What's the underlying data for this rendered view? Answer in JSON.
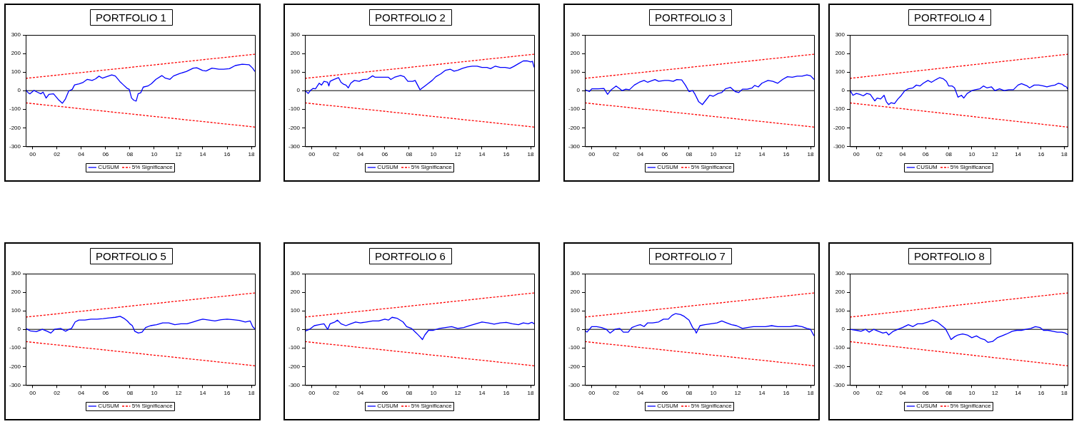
{
  "chart_data": [
    {
      "type": "line",
      "title": "PORTFOLIO 1",
      "xlim": [
        1999.43,
        2018.29
      ],
      "xticks": [
        {
          "value": 2000,
          "label": "00"
        },
        {
          "value": 2002,
          "label": "02"
        },
        {
          "value": 2004,
          "label": "04"
        },
        {
          "value": 2006,
          "label": "06"
        },
        {
          "value": 2008,
          "label": "08"
        },
        {
          "value": 2010,
          "label": "10"
        },
        {
          "value": 2012,
          "label": "12"
        },
        {
          "value": 2014,
          "label": "14"
        },
        {
          "value": 2016,
          "label": "16"
        },
        {
          "value": 2018,
          "label": "18"
        }
      ],
      "ylim": [
        -300,
        300
      ],
      "yticks": [
        -300,
        -200,
        -100,
        0,
        100,
        200,
        300
      ],
      "grid": false,
      "legend": "bottom",
      "marker": "none",
      "ref_lines": [
        {
          "axis": "y",
          "value": 0,
          "color": "#000000"
        }
      ],
      "series": [
        {
          "name": "CUSUM",
          "color": "#0000ff",
          "line_style": "solid",
          "x": [
            1999.43,
            1999.62,
            1999.77,
            2000.1,
            2000.38,
            2000.67,
            2000.86,
            2001.11,
            2001.34,
            2001.72,
            2002.1,
            2002.45,
            2002.68,
            2002.97,
            2003.26,
            2003.45,
            2003.83,
            2004.12,
            2004.5,
            2004.89,
            2005.17,
            2005.46,
            2005.75,
            2006.51,
            2006.8,
            2007.18,
            2007.47,
            2007.76,
            2007.95,
            2008.14,
            2008.33,
            2008.52,
            2008.68,
            2008.9,
            2009.1,
            2009.48,
            2009.77,
            2010.15,
            2010.63,
            2010.92,
            2011.3,
            2011.59,
            2012.07,
            2012.64,
            2013.22,
            2013.51,
            2013.98,
            2014.27,
            2014.75,
            2015.33,
            2015.71,
            2016.19,
            2016.67,
            2017.24,
            2017.82,
            2018.1,
            2018.29
          ],
          "values": [
            7,
            -11,
            -17,
            1,
            -8,
            -17,
            -8,
            -40,
            -20,
            -17,
            -47,
            -68,
            -47,
            -2,
            7,
            31,
            37,
            43,
            61,
            55,
            63,
            78,
            67,
            85,
            79,
            49,
            31,
            13,
            7,
            -40,
            -52,
            -56,
            -17,
            -11,
            19,
            25,
            37,
            61,
            81,
            67,
            61,
            79,
            91,
            103,
            121,
            123,
            109,
            106,
            121,
            115,
            115,
            118,
            135,
            142,
            139,
            121,
            103
          ]
        },
        {
          "name": "5% Significance",
          "color": "#ff0000",
          "line_style": "dashed",
          "x": [
            1999.43,
            2018.29
          ],
          "values": [
            66,
            196
          ]
        },
        {
          "color": "#ff0000",
          "line_style": "dashed",
          "x": [
            1999.43,
            2018.29
          ],
          "values": [
            -66,
            -196
          ]
        }
      ]
    },
    {
      "type": "line",
      "title": "PORTFOLIO 2",
      "xlim": [
        1999.43,
        2018.29
      ],
      "xticks": [
        {
          "value": 2000,
          "label": "00"
        },
        {
          "value": 2002,
          "label": "02"
        },
        {
          "value": 2004,
          "label": "04"
        },
        {
          "value": 2006,
          "label": "06"
        },
        {
          "value": 2008,
          "label": "08"
        },
        {
          "value": 2010,
          "label": "10"
        },
        {
          "value": 2012,
          "label": "12"
        },
        {
          "value": 2014,
          "label": "14"
        },
        {
          "value": 2016,
          "label": "16"
        },
        {
          "value": 2018,
          "label": "18"
        }
      ],
      "ylim": [
        -300,
        300
      ],
      "yticks": [
        -300,
        -200,
        -100,
        0,
        100,
        200,
        300
      ],
      "grid": false,
      "legend": "bottom",
      "marker": "none",
      "ref_lines": [
        {
          "axis": "y",
          "value": 0,
          "color": "#000000"
        }
      ],
      "series": [
        {
          "name": "CUSUM",
          "color": "#0000ff",
          "line_style": "solid",
          "x": [
            1999.43,
            1999.7,
            1999.9,
            2000.1,
            2000.3,
            2000.6,
            2000.8,
            2001.0,
            2001.3,
            2001.4,
            2001.5,
            2001.8,
            2002.2,
            2002.4,
            2002.6,
            2002.8,
            2003.0,
            2003.2,
            2003.5,
            2003.9,
            2004.2,
            2004.6,
            2005.0,
            2005.2,
            2005.8,
            2006.3,
            2006.5,
            2006.8,
            2007.3,
            2007.6,
            2007.9,
            2008.3,
            2008.5,
            2008.7,
            2008.9,
            2009.1,
            2009.3,
            2009.6,
            2009.9,
            2010.2,
            2010.6,
            2011.0,
            2011.4,
            2011.7,
            2012.0,
            2012.4,
            2012.8,
            2013.2,
            2013.6,
            2014.0,
            2014.4,
            2014.7,
            2015.1,
            2015.5,
            2015.9,
            2016.3,
            2016.6,
            2017.0,
            2017.4,
            2017.7,
            2018.0,
            2018.15,
            2018.29
          ],
          "values": [
            0,
            -15,
            2,
            12,
            10,
            40,
            30,
            50,
            45,
            25,
            50,
            60,
            70,
            45,
            35,
            30,
            15,
            40,
            55,
            50,
            60,
            62,
            80,
            72,
            72,
            72,
            60,
            72,
            82,
            75,
            50,
            50,
            55,
            30,
            5,
            15,
            25,
            40,
            55,
            75,
            90,
            110,
            115,
            105,
            110,
            120,
            128,
            132,
            132,
            125,
            125,
            118,
            132,
            125,
            125,
            120,
            130,
            145,
            160,
            160,
            155,
            158,
            125
          ]
        },
        {
          "name": "5% Significance",
          "color": "#ff0000",
          "line_style": "dashed",
          "x": [
            1999.43,
            2018.29
          ],
          "values": [
            66,
            196
          ]
        },
        {
          "color": "#ff0000",
          "line_style": "dashed",
          "x": [
            1999.43,
            2018.29
          ],
          "values": [
            -66,
            -196
          ]
        }
      ]
    },
    {
      "type": "line",
      "title": "PORTFOLIO 3",
      "xlim": [
        1999.43,
        2018.29
      ],
      "xticks": [
        {
          "value": 2000,
          "label": "00"
        },
        {
          "value": 2002,
          "label": "02"
        },
        {
          "value": 2004,
          "label": "04"
        },
        {
          "value": 2006,
          "label": "06"
        },
        {
          "value": 2008,
          "label": "08"
        },
        {
          "value": 2010,
          "label": "10"
        },
        {
          "value": 2012,
          "label": "12"
        },
        {
          "value": 2014,
          "label": "14"
        },
        {
          "value": 2016,
          "label": "16"
        },
        {
          "value": 2018,
          "label": "18"
        }
      ],
      "ylim": [
        -300,
        300
      ],
      "yticks": [
        -300,
        -200,
        -100,
        0,
        100,
        200,
        300
      ],
      "grid": false,
      "legend": "bottom",
      "marker": "none",
      "ref_lines": [
        {
          "axis": "y",
          "value": 0,
          "color": "#000000"
        }
      ],
      "series": [
        {
          "name": "CUSUM",
          "color": "#0000ff",
          "line_style": "solid",
          "x": [
            1999.43,
            1999.8,
            2000.0,
            2000.5,
            2001.0,
            2001.3,
            2001.6,
            2002.0,
            2002.3,
            2002.5,
            2002.8,
            2003.1,
            2003.5,
            2003.9,
            2004.3,
            2004.6,
            2005.0,
            2005.2,
            2005.5,
            2006.0,
            2006.3,
            2006.7,
            2007.0,
            2007.4,
            2007.7,
            2008.0,
            2008.3,
            2008.5,
            2008.8,
            2009.1,
            2009.4,
            2009.7,
            2010.0,
            2010.4,
            2010.7,
            2011.0,
            2011.4,
            2011.8,
            2012.1,
            2012.4,
            2012.8,
            2013.2,
            2013.4,
            2013.7,
            2014.0,
            2014.5,
            2014.9,
            2015.3,
            2015.7,
            2016.1,
            2016.5,
            2016.9,
            2017.3,
            2017.7,
            2018.0,
            2018.29
          ],
          "values": [
            5,
            -5,
            10,
            10,
            12,
            -20,
            5,
            25,
            10,
            0,
            8,
            5,
            30,
            45,
            55,
            45,
            55,
            60,
            50,
            55,
            55,
            50,
            60,
            58,
            30,
            -5,
            0,
            -20,
            -60,
            -75,
            -50,
            -25,
            -30,
            -15,
            -10,
            10,
            18,
            -5,
            -10,
            8,
            8,
            15,
            28,
            20,
            40,
            55,
            50,
            40,
            60,
            75,
            72,
            78,
            78,
            85,
            80,
            60
          ]
        },
        {
          "name": "5% Significance",
          "color": "#ff0000",
          "line_style": "dashed",
          "x": [
            1999.43,
            2018.29
          ],
          "values": [
            66,
            196
          ]
        },
        {
          "color": "#ff0000",
          "line_style": "dashed",
          "x": [
            1999.43,
            2018.29
          ],
          "values": [
            -66,
            -196
          ]
        }
      ]
    },
    {
      "type": "line",
      "title": "PORTFOLIO 4",
      "xlim": [
        1999.43,
        2018.29
      ],
      "xticks": [
        {
          "value": 2000,
          "label": "00"
        },
        {
          "value": 2002,
          "label": "02"
        },
        {
          "value": 2004,
          "label": "04"
        },
        {
          "value": 2006,
          "label": "06"
        },
        {
          "value": 2008,
          "label": "08"
        },
        {
          "value": 2010,
          "label": "10"
        },
        {
          "value": 2012,
          "label": "12"
        },
        {
          "value": 2014,
          "label": "14"
        },
        {
          "value": 2016,
          "label": "16"
        },
        {
          "value": 2018,
          "label": "18"
        }
      ],
      "ylim": [
        -300,
        300
      ],
      "yticks": [
        -300,
        -200,
        -100,
        0,
        100,
        200,
        300
      ],
      "grid": false,
      "legend": "bottom",
      "marker": "none",
      "ref_lines": [
        {
          "axis": "y",
          "value": 0,
          "color": "#000000"
        }
      ],
      "series": [
        {
          "name": "CUSUM",
          "color": "#0000ff",
          "line_style": "solid",
          "x": [
            1999.43,
            1999.7,
            2000.0,
            2000.3,
            2000.6,
            2000.9,
            2001.2,
            2001.6,
            2001.8,
            2002.1,
            2002.4,
            2002.6,
            2002.8,
            2003.0,
            2003.3,
            2003.6,
            2003.9,
            2004.2,
            2004.5,
            2004.9,
            2005.2,
            2005.5,
            2005.8,
            2006.2,
            2006.5,
            2006.9,
            2007.2,
            2007.5,
            2007.8,
            2008.0,
            2008.3,
            2008.5,
            2008.8,
            2009.1,
            2009.3,
            2009.6,
            2010.0,
            2010.3,
            2010.7,
            2011.0,
            2011.3,
            2011.7,
            2012.0,
            2012.4,
            2012.8,
            2013.2,
            2013.6,
            2014.0,
            2014.3,
            2014.8,
            2015.0,
            2015.4,
            2015.8,
            2016.2,
            2016.5,
            2016.8,
            2017.2,
            2017.5,
            2017.8,
            2018.0,
            2018.2,
            2018.29
          ],
          "values": [
            5,
            -25,
            -15,
            -20,
            -28,
            -15,
            -20,
            -55,
            -40,
            -45,
            -25,
            -60,
            -75,
            -65,
            -70,
            -45,
            -25,
            0,
            10,
            15,
            30,
            25,
            40,
            55,
            45,
            60,
            70,
            65,
            50,
            25,
            25,
            15,
            -35,
            -25,
            -40,
            -15,
            0,
            5,
            10,
            25,
            15,
            20,
            0,
            10,
            0,
            5,
            5,
            30,
            38,
            25,
            15,
            30,
            30,
            25,
            20,
            25,
            30,
            40,
            35,
            25,
            20,
            8
          ]
        },
        {
          "name": "5% Significance",
          "color": "#ff0000",
          "line_style": "dashed",
          "x": [
            1999.43,
            2018.29
          ],
          "values": [
            66,
            196
          ]
        },
        {
          "color": "#ff0000",
          "line_style": "dashed",
          "x": [
            1999.43,
            2018.29
          ],
          "values": [
            -66,
            -196
          ]
        }
      ]
    },
    {
      "type": "line",
      "title": "PORTFOLIO 5",
      "xlim": [
        1999.43,
        2018.29
      ],
      "xticks": [
        {
          "value": 2000,
          "label": "00"
        },
        {
          "value": 2002,
          "label": "02"
        },
        {
          "value": 2004,
          "label": "04"
        },
        {
          "value": 2006,
          "label": "06"
        },
        {
          "value": 2008,
          "label": "08"
        },
        {
          "value": 2010,
          "label": "10"
        },
        {
          "value": 2012,
          "label": "12"
        },
        {
          "value": 2014,
          "label": "14"
        },
        {
          "value": 2016,
          "label": "16"
        },
        {
          "value": 2018,
          "label": "18"
        }
      ],
      "ylim": [
        -300,
        300
      ],
      "yticks": [
        -300,
        -200,
        -100,
        0,
        100,
        200,
        300
      ],
      "grid": false,
      "legend": "bottom",
      "marker": "none",
      "ref_lines": [
        {
          "axis": "y",
          "value": 0,
          "color": "#000000"
        }
      ],
      "series": [
        {
          "name": "CUSUM",
          "color": "#0000ff",
          "line_style": "solid",
          "x": [
            1999.43,
            1999.8,
            2000.3,
            2000.8,
            2001.2,
            2001.5,
            2001.8,
            2002.3,
            2002.7,
            2003.0,
            2003.2,
            2003.5,
            2003.8,
            2004.3,
            2004.8,
            2005.3,
            2005.8,
            2006.3,
            2006.8,
            2007.2,
            2007.5,
            2007.8,
            2008.0,
            2008.2,
            2008.4,
            2008.7,
            2009.0,
            2009.3,
            2009.7,
            2010.2,
            2010.7,
            2011.2,
            2011.7,
            2012.2,
            2012.7,
            2013.2,
            2013.7,
            2014.0,
            2014.5,
            2015.0,
            2015.5,
            2016.0,
            2016.5,
            2017.0,
            2017.5,
            2017.9,
            2018.1,
            2018.29
          ],
          "values": [
            5,
            -8,
            -12,
            0,
            -10,
            -20,
            0,
            5,
            -10,
            0,
            5,
            40,
            50,
            50,
            55,
            55,
            58,
            62,
            65,
            70,
            60,
            45,
            30,
            20,
            -10,
            -20,
            -15,
            10,
            20,
            25,
            35,
            35,
            25,
            30,
            30,
            40,
            50,
            55,
            50,
            45,
            52,
            55,
            52,
            48,
            40,
            45,
            15,
            2
          ]
        },
        {
          "name": "5% Significance",
          "color": "#ff0000",
          "line_style": "dashed",
          "x": [
            1999.43,
            2018.29
          ],
          "values": [
            66,
            196
          ]
        },
        {
          "color": "#ff0000",
          "line_style": "dashed",
          "x": [
            1999.43,
            2018.29
          ],
          "values": [
            -66,
            -196
          ]
        }
      ]
    },
    {
      "type": "line",
      "title": "PORTFOLIO 6",
      "xlim": [
        1999.43,
        2018.29
      ],
      "xticks": [
        {
          "value": 2000,
          "label": "00"
        },
        {
          "value": 2002,
          "label": "02"
        },
        {
          "value": 2004,
          "label": "04"
        },
        {
          "value": 2006,
          "label": "06"
        },
        {
          "value": 2008,
          "label": "08"
        },
        {
          "value": 2010,
          "label": "10"
        },
        {
          "value": 2012,
          "label": "12"
        },
        {
          "value": 2014,
          "label": "14"
        },
        {
          "value": 2016,
          "label": "16"
        },
        {
          "value": 2018,
          "label": "18"
        }
      ],
      "ylim": [
        -300,
        300
      ],
      "yticks": [
        -300,
        -200,
        -100,
        0,
        100,
        200,
        300
      ],
      "grid": false,
      "legend": "bottom",
      "marker": "none",
      "ref_lines": [
        {
          "axis": "y",
          "value": 0,
          "color": "#000000"
        }
      ],
      "series": [
        {
          "name": "CUSUM",
          "color": "#0000ff",
          "line_style": "solid",
          "x": [
            1999.43,
            1999.8,
            2000.2,
            2000.6,
            2001.0,
            2001.3,
            2001.5,
            2001.9,
            2002.1,
            2002.4,
            2002.8,
            2003.2,
            2003.6,
            2004.0,
            2004.5,
            2005.0,
            2005.5,
            2006.0,
            2006.3,
            2006.6,
            2007.0,
            2007.5,
            2007.8,
            2008.2,
            2008.6,
            2008.9,
            2009.1,
            2009.3,
            2009.6,
            2010.0,
            2010.5,
            2011.0,
            2011.5,
            2012.0,
            2012.5,
            2013.0,
            2013.5,
            2014.0,
            2014.5,
            2015.0,
            2015.5,
            2016.0,
            2016.5,
            2017.0,
            2017.4,
            2017.8,
            2018.1,
            2018.29
          ],
          "values": [
            -10,
            0,
            20,
            25,
            30,
            0,
            30,
            40,
            50,
            30,
            20,
            30,
            40,
            35,
            40,
            45,
            45,
            55,
            50,
            65,
            60,
            40,
            15,
            5,
            -20,
            -40,
            -55,
            -30,
            -5,
            -5,
            5,
            10,
            15,
            5,
            10,
            20,
            30,
            40,
            35,
            28,
            35,
            38,
            30,
            25,
            35,
            30,
            38,
            30
          ]
        },
        {
          "name": "5% Significance",
          "color": "#ff0000",
          "line_style": "dashed",
          "x": [
            1999.43,
            2018.29
          ],
          "values": [
            66,
            196
          ]
        },
        {
          "color": "#ff0000",
          "line_style": "dashed",
          "x": [
            1999.43,
            2018.29
          ],
          "values": [
            -66,
            -196
          ]
        }
      ]
    },
    {
      "type": "line",
      "title": "PORTFOLIO 7",
      "xlim": [
        1999.43,
        2018.29
      ],
      "xticks": [
        {
          "value": 2000,
          "label": "00"
        },
        {
          "value": 2002,
          "label": "02"
        },
        {
          "value": 2004,
          "label": "04"
        },
        {
          "value": 2006,
          "label": "06"
        },
        {
          "value": 2008,
          "label": "08"
        },
        {
          "value": 2010,
          "label": "10"
        },
        {
          "value": 2012,
          "label": "12"
        },
        {
          "value": 2014,
          "label": "14"
        },
        {
          "value": 2016,
          "label": "16"
        },
        {
          "value": 2018,
          "label": "18"
        }
      ],
      "ylim": [
        -300,
        300
      ],
      "yticks": [
        -300,
        -200,
        -100,
        0,
        100,
        200,
        300
      ],
      "grid": false,
      "legend": "bottom",
      "marker": "none",
      "ref_lines": [
        {
          "axis": "y",
          "value": 0,
          "color": "#000000"
        }
      ],
      "series": [
        {
          "name": "CUSUM",
          "color": "#0000ff",
          "line_style": "solid",
          "x": [
            1999.43,
            1999.6,
            2000.0,
            2000.4,
            2000.8,
            2001.2,
            2001.5,
            2001.9,
            2002.3,
            2002.6,
            2003.0,
            2003.3,
            2003.7,
            2004.0,
            2004.3,
            2004.6,
            2005.0,
            2005.5,
            2005.9,
            2006.3,
            2006.6,
            2006.9,
            2007.3,
            2007.6,
            2008.0,
            2008.3,
            2008.5,
            2008.6,
            2008.9,
            2009.3,
            2009.8,
            2010.3,
            2010.7,
            2011.1,
            2011.5,
            2011.9,
            2012.4,
            2012.8,
            2013.3,
            2013.8,
            2014.3,
            2014.8,
            2015.3,
            2015.8,
            2016.3,
            2016.8,
            2017.3,
            2017.7,
            2018.0,
            2018.29
          ],
          "values": [
            -5,
            -15,
            15,
            15,
            10,
            0,
            -20,
            0,
            5,
            -15,
            -15,
            10,
            20,
            25,
            15,
            35,
            35,
            40,
            55,
            55,
            75,
            85,
            80,
            70,
            50,
            10,
            -5,
            -20,
            20,
            25,
            30,
            35,
            45,
            35,
            25,
            20,
            5,
            10,
            15,
            15,
            15,
            20,
            15,
            15,
            15,
            20,
            15,
            5,
            0,
            -35
          ]
        },
        {
          "name": "5% Significance",
          "color": "#ff0000",
          "line_style": "dashed",
          "x": [
            1999.43,
            2018.29
          ],
          "values": [
            66,
            196
          ]
        },
        {
          "color": "#ff0000",
          "line_style": "dashed",
          "x": [
            1999.43,
            2018.29
          ],
          "values": [
            -66,
            -196
          ]
        }
      ]
    },
    {
      "type": "line",
      "title": "PORTFOLIO 8",
      "xlim": [
        1999.43,
        2018.29
      ],
      "xticks": [
        {
          "value": 2000,
          "label": "00"
        },
        {
          "value": 2002,
          "label": "02"
        },
        {
          "value": 2004,
          "label": "04"
        },
        {
          "value": 2006,
          "label": "06"
        },
        {
          "value": 2008,
          "label": "08"
        },
        {
          "value": 2010,
          "label": "10"
        },
        {
          "value": 2012,
          "label": "12"
        },
        {
          "value": 2014,
          "label": "14"
        },
        {
          "value": 2016,
          "label": "16"
        },
        {
          "value": 2018,
          "label": "18"
        }
      ],
      "ylim": [
        -300,
        300
      ],
      "yticks": [
        -300,
        -200,
        -100,
        0,
        100,
        200,
        300
      ],
      "grid": false,
      "legend": "bottom",
      "marker": "none",
      "ref_lines": [
        {
          "axis": "y",
          "value": 0,
          "color": "#000000"
        }
      ],
      "series": [
        {
          "name": "CUSUM",
          "color": "#0000ff",
          "line_style": "solid",
          "x": [
            1999.43,
            2000.0,
            2000.4,
            2000.8,
            2001.1,
            2001.5,
            2001.9,
            2002.3,
            2002.6,
            2002.8,
            2003.2,
            2003.6,
            2004.0,
            2004.5,
            2004.9,
            2005.3,
            2005.7,
            2006.2,
            2006.6,
            2007.0,
            2007.4,
            2007.7,
            2008.0,
            2008.2,
            2008.5,
            2008.8,
            2009.2,
            2009.6,
            2010.0,
            2010.4,
            2010.8,
            2011.1,
            2011.4,
            2011.8,
            2012.2,
            2012.6,
            2013.0,
            2013.5,
            2013.9,
            2014.3,
            2014.7,
            2015.1,
            2015.5,
            2015.9,
            2016.2,
            2016.6,
            2017.0,
            2017.4,
            2017.8,
            2018.1,
            2018.29
          ],
          "values": [
            0,
            -5,
            -10,
            0,
            -15,
            0,
            -10,
            -20,
            -15,
            -30,
            -10,
            0,
            10,
            25,
            15,
            30,
            30,
            40,
            50,
            40,
            20,
            5,
            -30,
            -55,
            -40,
            -30,
            -25,
            -30,
            -45,
            -35,
            -50,
            -55,
            -70,
            -65,
            -45,
            -35,
            -25,
            -10,
            -5,
            -5,
            0,
            5,
            15,
            10,
            -5,
            -5,
            -10,
            -15,
            -15,
            -20,
            -28
          ]
        },
        {
          "name": "5% Significance",
          "color": "#ff0000",
          "line_style": "dashed",
          "x": [
            1999.43,
            2018.29
          ],
          "values": [
            66,
            196
          ]
        },
        {
          "color": "#ff0000",
          "line_style": "dashed",
          "x": [
            1999.43,
            2018.29
          ],
          "values": [
            -66,
            -196
          ]
        }
      ]
    }
  ]
}
